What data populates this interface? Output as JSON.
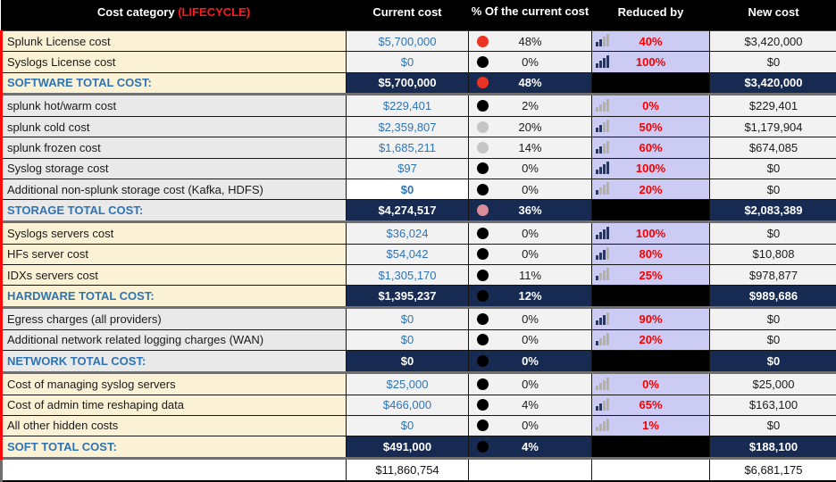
{
  "header": {
    "cost_category": "Cost category",
    "lifecycle": "(LIFECYCLE)",
    "current_cost": "Current cost",
    "pct_of_current": "% Of the current cost",
    "reduced_by": "Reduced by",
    "new_cost": "New cost"
  },
  "colors": {
    "accent_navy_total": "#172a52",
    "lavender_reduced": "#cbcbf3",
    "cream_band": "#fbf1d4",
    "gray_band": "#e9e9e9",
    "red_text": "#f50000",
    "blue_text": "#2e74b5",
    "red_left_border": "#fb0a0a",
    "circle": {
      "red": "#ea3323",
      "black": "#000000",
      "gray": "#c5c5c5",
      "pink": "#d98d98"
    },
    "bar_on": "#203864",
    "bar_off": "#b5b29c"
  },
  "rows": [
    {
      "type": "item",
      "band": "cream",
      "label": "Splunk License cost",
      "current": "$5,700,000",
      "circle": "red",
      "pct": "48%",
      "bars": 2,
      "reduced": "40%",
      "new": "$3,420,000"
    },
    {
      "type": "item",
      "band": "cream",
      "label": "Syslogs License cost",
      "current": "$0",
      "circle": "black",
      "pct": "0%",
      "bars": 4,
      "reduced": "100%",
      "new": "$0"
    },
    {
      "type": "total",
      "band": "cream",
      "label": "SOFTWARE TOTAL COST:",
      "current": "$5,700,000",
      "circle": "red",
      "pct": "48%",
      "reduced": "",
      "new": "$3,420,000"
    },
    {
      "type": "item",
      "band": "gray",
      "label": "splunk hot/warm cost",
      "current": "$229,401",
      "circle": "black",
      "pct": "2%",
      "bars": 0,
      "reduced": "0%",
      "new": "$229,401",
      "thick_top": true
    },
    {
      "type": "item",
      "band": "gray",
      "label": "splunk cold cost",
      "current": "$2,359,807",
      "circle": "gray",
      "pct": "20%",
      "bars": 2,
      "reduced": "50%",
      "new": "$1,179,904",
      "dotted": true
    },
    {
      "type": "item",
      "band": "gray",
      "label": "splunk frozen cost",
      "current": "$1,685,211",
      "circle": "gray",
      "pct": "14%",
      "bars": 2,
      "reduced": "60%",
      "new": "$674,085",
      "dotted": true
    },
    {
      "type": "item",
      "band": "gray",
      "label": "Syslog storage cost",
      "current": "$97",
      "circle": "black",
      "pct": "0%",
      "bars": 4,
      "reduced": "100%",
      "new": "$0"
    },
    {
      "type": "item",
      "band": "gray",
      "label": "Additional non-splunk storage cost (Kafka, HDFS)",
      "current": "$0",
      "current_highlight": true,
      "circle": "black",
      "pct": "0%",
      "bars": 1,
      "reduced": "20%",
      "new": "$0"
    },
    {
      "type": "total",
      "band": "gray",
      "label": "STORAGE TOTAL COST:",
      "current": "$4,274,517",
      "circle": "pink",
      "pct": "36%",
      "reduced": "",
      "new": "$2,083,389"
    },
    {
      "type": "item",
      "band": "cream",
      "label": "Syslogs servers cost",
      "current": "$36,024",
      "circle": "black",
      "pct": "0%",
      "bars": 4,
      "reduced": "100%",
      "new": "$0",
      "thick_top": true
    },
    {
      "type": "item",
      "band": "cream",
      "label": "HFs server cost",
      "current": "$54,042",
      "circle": "black",
      "pct": "0%",
      "bars": 3,
      "reduced": "80%",
      "new": "$10,808"
    },
    {
      "type": "item",
      "band": "cream",
      "label": "IDXs servers cost",
      "current": "$1,305,170",
      "circle": "black",
      "pct": "11%",
      "bars": 1,
      "reduced": "25%",
      "new": "$978,877"
    },
    {
      "type": "total",
      "band": "cream",
      "label": "HARDWARE TOTAL COST:",
      "current": "$1,395,237",
      "circle": "black",
      "pct": "12%",
      "reduced": "",
      "new": "$989,686"
    },
    {
      "type": "item",
      "band": "gray",
      "label": "Egress charges (all providers)",
      "current": "$0",
      "circle": "black",
      "pct": "0%",
      "bars": 3,
      "reduced": "90%",
      "new": "$0",
      "thick_top": true
    },
    {
      "type": "item",
      "band": "gray",
      "label": "Additional network related logging charges (WAN)",
      "current": "$0",
      "circle": "black",
      "pct": "0%",
      "bars": 1,
      "reduced": "20%",
      "new": "$0"
    },
    {
      "type": "total",
      "band": "gray",
      "label": "NETWORK TOTAL COST:",
      "current": "$0",
      "circle": "black",
      "pct": "0%",
      "reduced": "",
      "new": "$0"
    },
    {
      "type": "item",
      "band": "cream",
      "label": "Cost of managing syslog servers",
      "current": "$25,000",
      "circle": "black",
      "pct": "0%",
      "bars": 0,
      "reduced": "0%",
      "new": "$25,000",
      "thick_top": true
    },
    {
      "type": "item",
      "band": "cream",
      "label": "Cost of admin time reshaping data",
      "current": "$466,000",
      "circle": "black",
      "pct": "4%",
      "bars": 2,
      "reduced": "65%",
      "new": "$163,100"
    },
    {
      "type": "item",
      "band": "cream",
      "label": "All other hidden costs",
      "current": "$0",
      "circle": "black",
      "pct": "0%",
      "bars": 0,
      "reduced": "1%",
      "new": "$0"
    },
    {
      "type": "total",
      "band": "cream",
      "label": "SOFT TOTAL COST:",
      "current": "$491,000",
      "circle": "black",
      "pct": "4%",
      "reduced": "",
      "new": "$188,100"
    },
    {
      "type": "grand",
      "band": "white",
      "label": "",
      "current": "$11,860,754",
      "circle": "none",
      "pct": "",
      "reduced": "",
      "new": "$6,681,175",
      "thick_top": true
    }
  ]
}
